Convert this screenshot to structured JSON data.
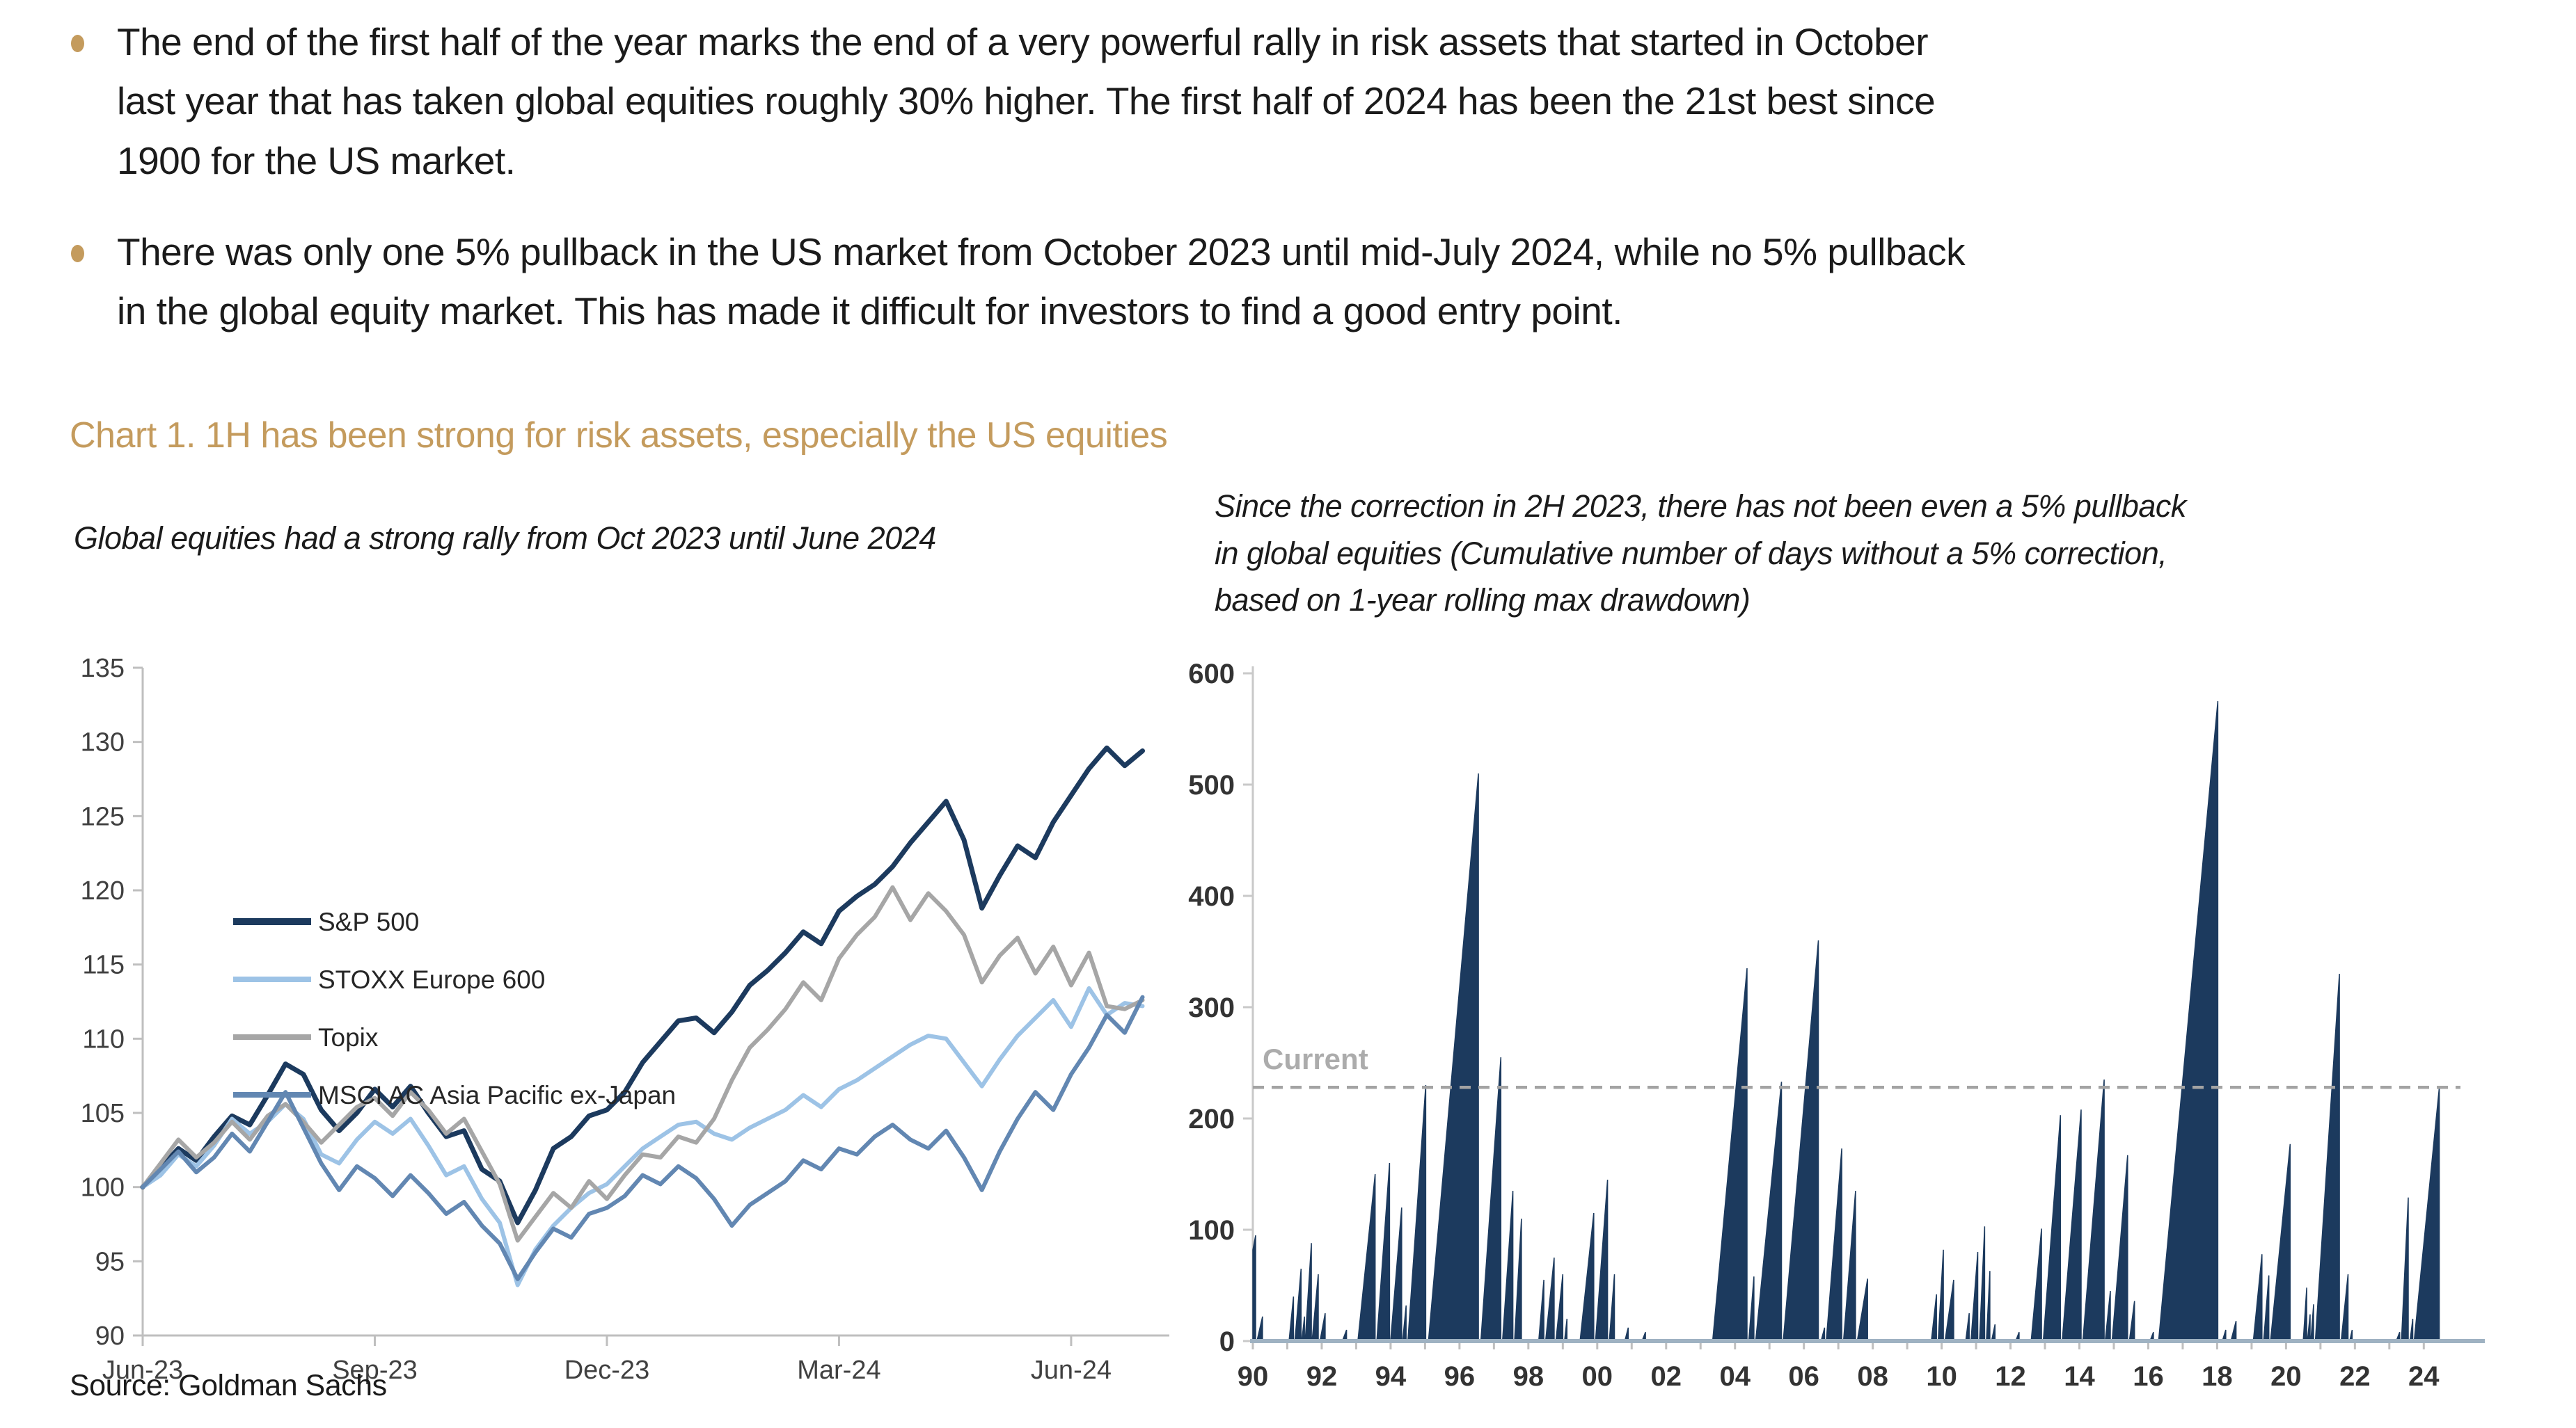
{
  "page": {
    "background": "#FFFFFF",
    "accent_gold": "#C49B5D"
  },
  "bullets": [
    {
      "text": "The end of the first half of the year marks the end of a very powerful rally in risk assets that started in October\nlast year that has taken global equities roughly 30% higher. The first half of 2024 has been the 21st best since\n1900 for the US market."
    },
    {
      "text": "There was only one 5% pullback in the US market from October 2023 until mid-July 2024, while no 5% pullback\nin the global equity market. This has made it difficult for investors to find a good entry point."
    }
  ],
  "chart_section": {
    "title": "Chart 1. 1H has been strong for risk assets, especially the US equities",
    "title_color": "#C49B5D"
  },
  "source": "Source: Goldman Sachs",
  "chart_data": [
    {
      "type": "line",
      "panel": "left",
      "subtitle": "Global equities had a strong rally from Oct 2023 until June 2024",
      "x_axis": {
        "tick_labels": [
          "Jun-23",
          "Sep-23",
          "Dec-23",
          "Mar-24",
          "Jun-24"
        ],
        "tick_week_index": [
          0,
          13,
          26,
          39,
          52
        ],
        "weeks_total": 57.5,
        "unit": "weekly index points, Jun-2023 = 100"
      },
      "y_axis": {
        "min": 90,
        "max": 135,
        "tick_step": 5,
        "ticks": [
          90,
          95,
          100,
          105,
          110,
          115,
          120,
          125,
          130,
          135
        ]
      },
      "grid": false,
      "legend_position": "inside-upper-left",
      "axis_color": "#BFBFBF",
      "label_color": "#404040",
      "series": [
        {
          "name": "S&P 500",
          "color": "#1C3A5E",
          "width": 7,
          "values": [
            100,
            101.3,
            102.6,
            101.8,
            103.4,
            104.8,
            104.2,
            106.2,
            108.3,
            107.6,
            105.2,
            103.8,
            105,
            106.6,
            105.4,
            106.8,
            105,
            103.4,
            103.8,
            101.2,
            100.4,
            97.6,
            99.8,
            102.6,
            103.4,
            104.8,
            105.2,
            106.4,
            108.4,
            109.8,
            111.2,
            111.4,
            110.4,
            111.8,
            113.6,
            114.6,
            115.8,
            117.2,
            116.4,
            118.6,
            119.6,
            120.4,
            121.6,
            123.2,
            124.6,
            126,
            123.4,
            118.8,
            121,
            123,
            122.2,
            124.6,
            126.4,
            128.2,
            129.6,
            128.4,
            129.4
          ]
        },
        {
          "name": "STOXX Europe 600",
          "color": "#9DC3E6",
          "width": 6,
          "values": [
            100,
            100.8,
            102.2,
            101.4,
            102.8,
            104.6,
            103.6,
            104.4,
            105.6,
            104.6,
            102.2,
            101.6,
            103.2,
            104.4,
            103.6,
            104.6,
            102.8,
            100.8,
            101.4,
            99.2,
            97.6,
            93.4,
            95.8,
            97.4,
            98.6,
            99.6,
            100.2,
            101.4,
            102.6,
            103.4,
            104.2,
            104.4,
            103.6,
            103.2,
            104,
            104.6,
            105.2,
            106.2,
            105.4,
            106.6,
            107.2,
            108,
            108.8,
            109.6,
            110.2,
            110,
            108.4,
            106.8,
            108.6,
            110.2,
            111.4,
            112.6,
            110.8,
            113.4,
            111.6,
            112.4,
            112.2
          ]
        },
        {
          "name": "Topix",
          "color": "#A6A6A6",
          "width": 6,
          "values": [
            100,
            101.6,
            103.2,
            102,
            103,
            104.4,
            103.2,
            104.8,
            105.6,
            104.4,
            103,
            104.2,
            105.4,
            106,
            104.8,
            106.4,
            105.2,
            103.6,
            104.6,
            102.4,
            100.2,
            96.4,
            98,
            99.6,
            98.6,
            100.4,
            99.2,
            100.8,
            102.2,
            102,
            103.4,
            103,
            104.6,
            107.2,
            109.4,
            110.6,
            112,
            113.8,
            112.6,
            115.4,
            117,
            118.2,
            120.2,
            118,
            119.8,
            118.6,
            117,
            113.8,
            115.6,
            116.8,
            114.4,
            116.2,
            113.6,
            115.8,
            112.2,
            112,
            112.6
          ]
        },
        {
          "name": "MSCI AC Asia Pacific ex-Japan",
          "color": "#6287B2",
          "width": 6,
          "values": [
            100,
            101.2,
            102.4,
            101,
            102,
            103.6,
            102.4,
            104.4,
            106.4,
            104,
            101.6,
            99.8,
            101.4,
            100.6,
            99.4,
            100.8,
            99.6,
            98.2,
            99,
            97.4,
            96.2,
            93.8,
            95.6,
            97.2,
            96.6,
            98.2,
            98.6,
            99.4,
            100.8,
            100.2,
            101.4,
            100.6,
            99.2,
            97.4,
            98.8,
            99.6,
            100.4,
            101.8,
            101.2,
            102.6,
            102.2,
            103.4,
            104.2,
            103.2,
            102.6,
            103.8,
            102,
            99.8,
            102.4,
            104.6,
            106.4,
            105.2,
            107.6,
            109.4,
            111.6,
            110.4,
            112.8
          ]
        }
      ]
    },
    {
      "type": "area",
      "panel": "right",
      "subtitle": "Since the correction in 2H 2023, there has not been even a 5% pullback\nin global equities (Cumulative number of days without a 5% correction,\nbased on 1-year rolling max drawdown)",
      "x_axis": {
        "min": 1990,
        "max": 2024.6,
        "tick_labels": [
          "90",
          "92",
          "94",
          "96",
          "98",
          "00",
          "02",
          "04",
          "06",
          "08",
          "10",
          "12",
          "14",
          "16",
          "18",
          "20",
          "22",
          "24"
        ],
        "tick_years": [
          1990,
          1992,
          1994,
          1996,
          1998,
          2000,
          2002,
          2004,
          2006,
          2008,
          2010,
          2012,
          2014,
          2016,
          2018,
          2020,
          2022,
          2024
        ]
      },
      "y_axis": {
        "min": 0,
        "max": 600,
        "tick_step": 100,
        "ticks": [
          0,
          100,
          200,
          300,
          400,
          500,
          600
        ]
      },
      "fill_color": "#1C3A5E",
      "baseline_color": "#9FB2C2",
      "axis_color": "#C9C9C9",
      "label_color": "#333333",
      "current_line": {
        "value": 228,
        "label": "Current",
        "color": "#A3A3A3",
        "label_color": "#ACACAC",
        "style": "dashed"
      },
      "ramps_note": "each entry = [streak start year, streak end year, peak cumulative days without 5% correction]; value resets to 0 after each peak",
      "ramps": [
        [
          1989.5,
          1990.08,
          95
        ],
        [
          1990.12,
          1990.28,
          22
        ],
        [
          1991.05,
          1991.18,
          40
        ],
        [
          1991.22,
          1991.4,
          65
        ],
        [
          1991.42,
          1991.5,
          22
        ],
        [
          1991.52,
          1991.7,
          88
        ],
        [
          1991.72,
          1991.9,
          60
        ],
        [
          1991.95,
          1992.1,
          25
        ],
        [
          1992.6,
          1992.72,
          10
        ],
        [
          1993.05,
          1993.55,
          150
        ],
        [
          1993.6,
          1993.97,
          160
        ],
        [
          1994.0,
          1994.32,
          120
        ],
        [
          1994.35,
          1994.45,
          32
        ],
        [
          1994.5,
          1995.02,
          230
        ],
        [
          1995.1,
          1996.55,
          510
        ],
        [
          1996.62,
          1997.2,
          255
        ],
        [
          1997.25,
          1997.55,
          135
        ],
        [
          1997.6,
          1997.8,
          110
        ],
        [
          1998.3,
          1998.45,
          55
        ],
        [
          1998.5,
          1998.75,
          75
        ],
        [
          1998.8,
          1999.0,
          60
        ],
        [
          1999.05,
          1999.12,
          20
        ],
        [
          1999.5,
          1999.9,
          115
        ],
        [
          1999.95,
          2000.3,
          145
        ],
        [
          2000.35,
          2000.5,
          60
        ],
        [
          2000.8,
          2000.9,
          12
        ],
        [
          2001.3,
          2001.4,
          8
        ],
        [
          2003.35,
          2004.35,
          335
        ],
        [
          2004.4,
          2004.55,
          58
        ],
        [
          2004.6,
          2005.35,
          233
        ],
        [
          2005.4,
          2006.42,
          360
        ],
        [
          2006.5,
          2006.6,
          12
        ],
        [
          2006.65,
          2007.1,
          173
        ],
        [
          2007.15,
          2007.5,
          135
        ],
        [
          2007.55,
          2007.85,
          56
        ],
        [
          2009.7,
          2009.85,
          42
        ],
        [
          2009.9,
          2010.05,
          82
        ],
        [
          2010.1,
          2010.35,
          55
        ],
        [
          2010.7,
          2010.8,
          25
        ],
        [
          2010.85,
          2011.05,
          80
        ],
        [
          2011.1,
          2011.25,
          103
        ],
        [
          2011.3,
          2011.4,
          63
        ],
        [
          2011.45,
          2011.55,
          15
        ],
        [
          2012.15,
          2012.25,
          8
        ],
        [
          2012.6,
          2012.9,
          101
        ],
        [
          2012.95,
          2013.45,
          203
        ],
        [
          2013.5,
          2014.05,
          208
        ],
        [
          2014.1,
          2014.72,
          235
        ],
        [
          2014.75,
          2014.9,
          45
        ],
        [
          2014.95,
          2015.4,
          167
        ],
        [
          2015.45,
          2015.6,
          36
        ],
        [
          2016.05,
          2016.15,
          8
        ],
        [
          2016.3,
          2018.02,
          575
        ],
        [
          2018.15,
          2018.25,
          10
        ],
        [
          2018.4,
          2018.55,
          18
        ],
        [
          2019.05,
          2019.3,
          78
        ],
        [
          2019.35,
          2019.5,
          59
        ],
        [
          2019.55,
          2020.12,
          177
        ],
        [
          2020.5,
          2020.6,
          48
        ],
        [
          2020.62,
          2020.7,
          24
        ],
        [
          2020.72,
          2020.8,
          33
        ],
        [
          2020.85,
          2021.55,
          330
        ],
        [
          2021.6,
          2021.8,
          60
        ],
        [
          2021.85,
          2021.92,
          10
        ],
        [
          2023.2,
          2023.3,
          8
        ],
        [
          2023.35,
          2023.55,
          129
        ],
        [
          2023.6,
          2023.68,
          20
        ],
        [
          2023.72,
          2024.45,
          228
        ]
      ]
    }
  ]
}
